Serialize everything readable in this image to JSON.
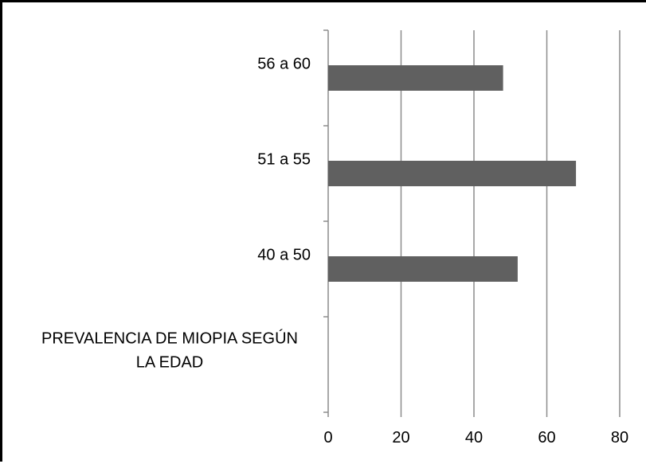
{
  "chart_data": {
    "type": "bar",
    "orientation": "horizontal",
    "categories": [
      "PREVALENCIA DE MIOPIA SEGÚN LA EDAD",
      "40 a 50",
      "51 a 55",
      "56 a 60"
    ],
    "category_label_lines": [
      [
        "PREVALENCIA DE MIOPIA SEGÚN",
        "LA EDAD"
      ],
      [
        "40 a 50"
      ],
      [
        "51 a 55"
      ],
      [
        "56 a 60"
      ]
    ],
    "values": [
      null,
      52,
      68,
      48
    ],
    "xlim": [
      0,
      80
    ],
    "xticks": [
      0,
      20,
      40,
      60,
      80
    ],
    "xtick_labels": [
      "0",
      "20",
      "40",
      "60",
      "80"
    ],
    "grid": "vertical",
    "legend": "none",
    "bar_color": "#606060",
    "grid_color": "#8c8c8c"
  }
}
